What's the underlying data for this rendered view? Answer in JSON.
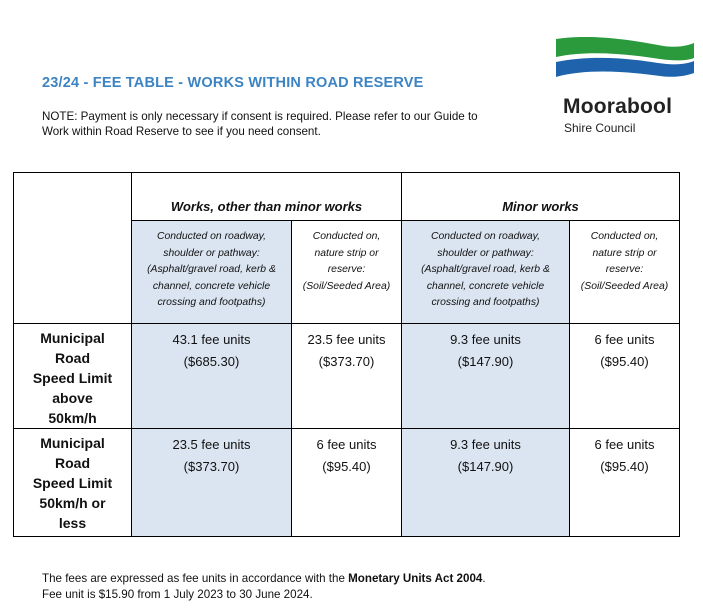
{
  "header": {
    "title": "23/24 - FEE TABLE - WORKS WITHIN ROAD RESERVE",
    "note_line1": "NOTE: Payment is only necessary if consent is required. Please refer to our Guide to",
    "note_line2": "Work within Road Reserve to see if you need consent."
  },
  "logo": {
    "name": "Moorabool",
    "subtitle": "Shire Council",
    "colors": {
      "green": "#2a9a3c",
      "blue": "#1f63ac"
    }
  },
  "table": {
    "groups": [
      "Works, other than minor works",
      "Minor works"
    ],
    "subheaders": [
      [
        "Conducted on  roadway,",
        "shoulder or pathway:",
        "(Asphalt/gravel road, kerb &",
        "channel, concrete vehicle",
        "crossing and footpaths)"
      ],
      [
        "Conducted on,",
        "nature strip or",
        "reserve:",
        "(Soil/Seeded Area)"
      ],
      [
        "Conducted on  roadway,",
        "shoulder or pathway:",
        "(Asphalt/gravel road, kerb &",
        "channel, concrete vehicle",
        "crossing and footpaths)"
      ],
      [
        "Conducted on,",
        "nature strip or",
        "reserve:",
        "(Soil/Seeded Area)"
      ]
    ],
    "rows": [
      {
        "label": [
          "Municipal",
          "Road",
          "Speed Limit",
          "above",
          "50km/h"
        ],
        "cells": [
          [
            "43.1 fee units",
            "($685.30)"
          ],
          [
            "23.5 fee units",
            "($373.70)"
          ],
          [
            "9.3 fee units",
            "($147.90)"
          ],
          [
            "6 fee units",
            "($95.40)"
          ]
        ]
      },
      {
        "label": [
          "Municipal",
          "Road",
          "Speed Limit",
          "50km/h or",
          "less"
        ],
        "cells": [
          [
            "23.5 fee units",
            "($373.70)"
          ],
          [
            "6 fee units",
            "($95.40)"
          ],
          [
            "9.3 fee units",
            "($147.90)"
          ],
          [
            "6 fee units",
            "($95.40)"
          ]
        ]
      }
    ]
  },
  "footer": {
    "line1_prefix": "The fees are expressed as fee units in accordance with the ",
    "line1_bold": "Monetary Units Act 2004",
    "line1_suffix": ".",
    "line2": "Fee unit is $15.90 from 1 July 2023 to 30 June 2024."
  }
}
